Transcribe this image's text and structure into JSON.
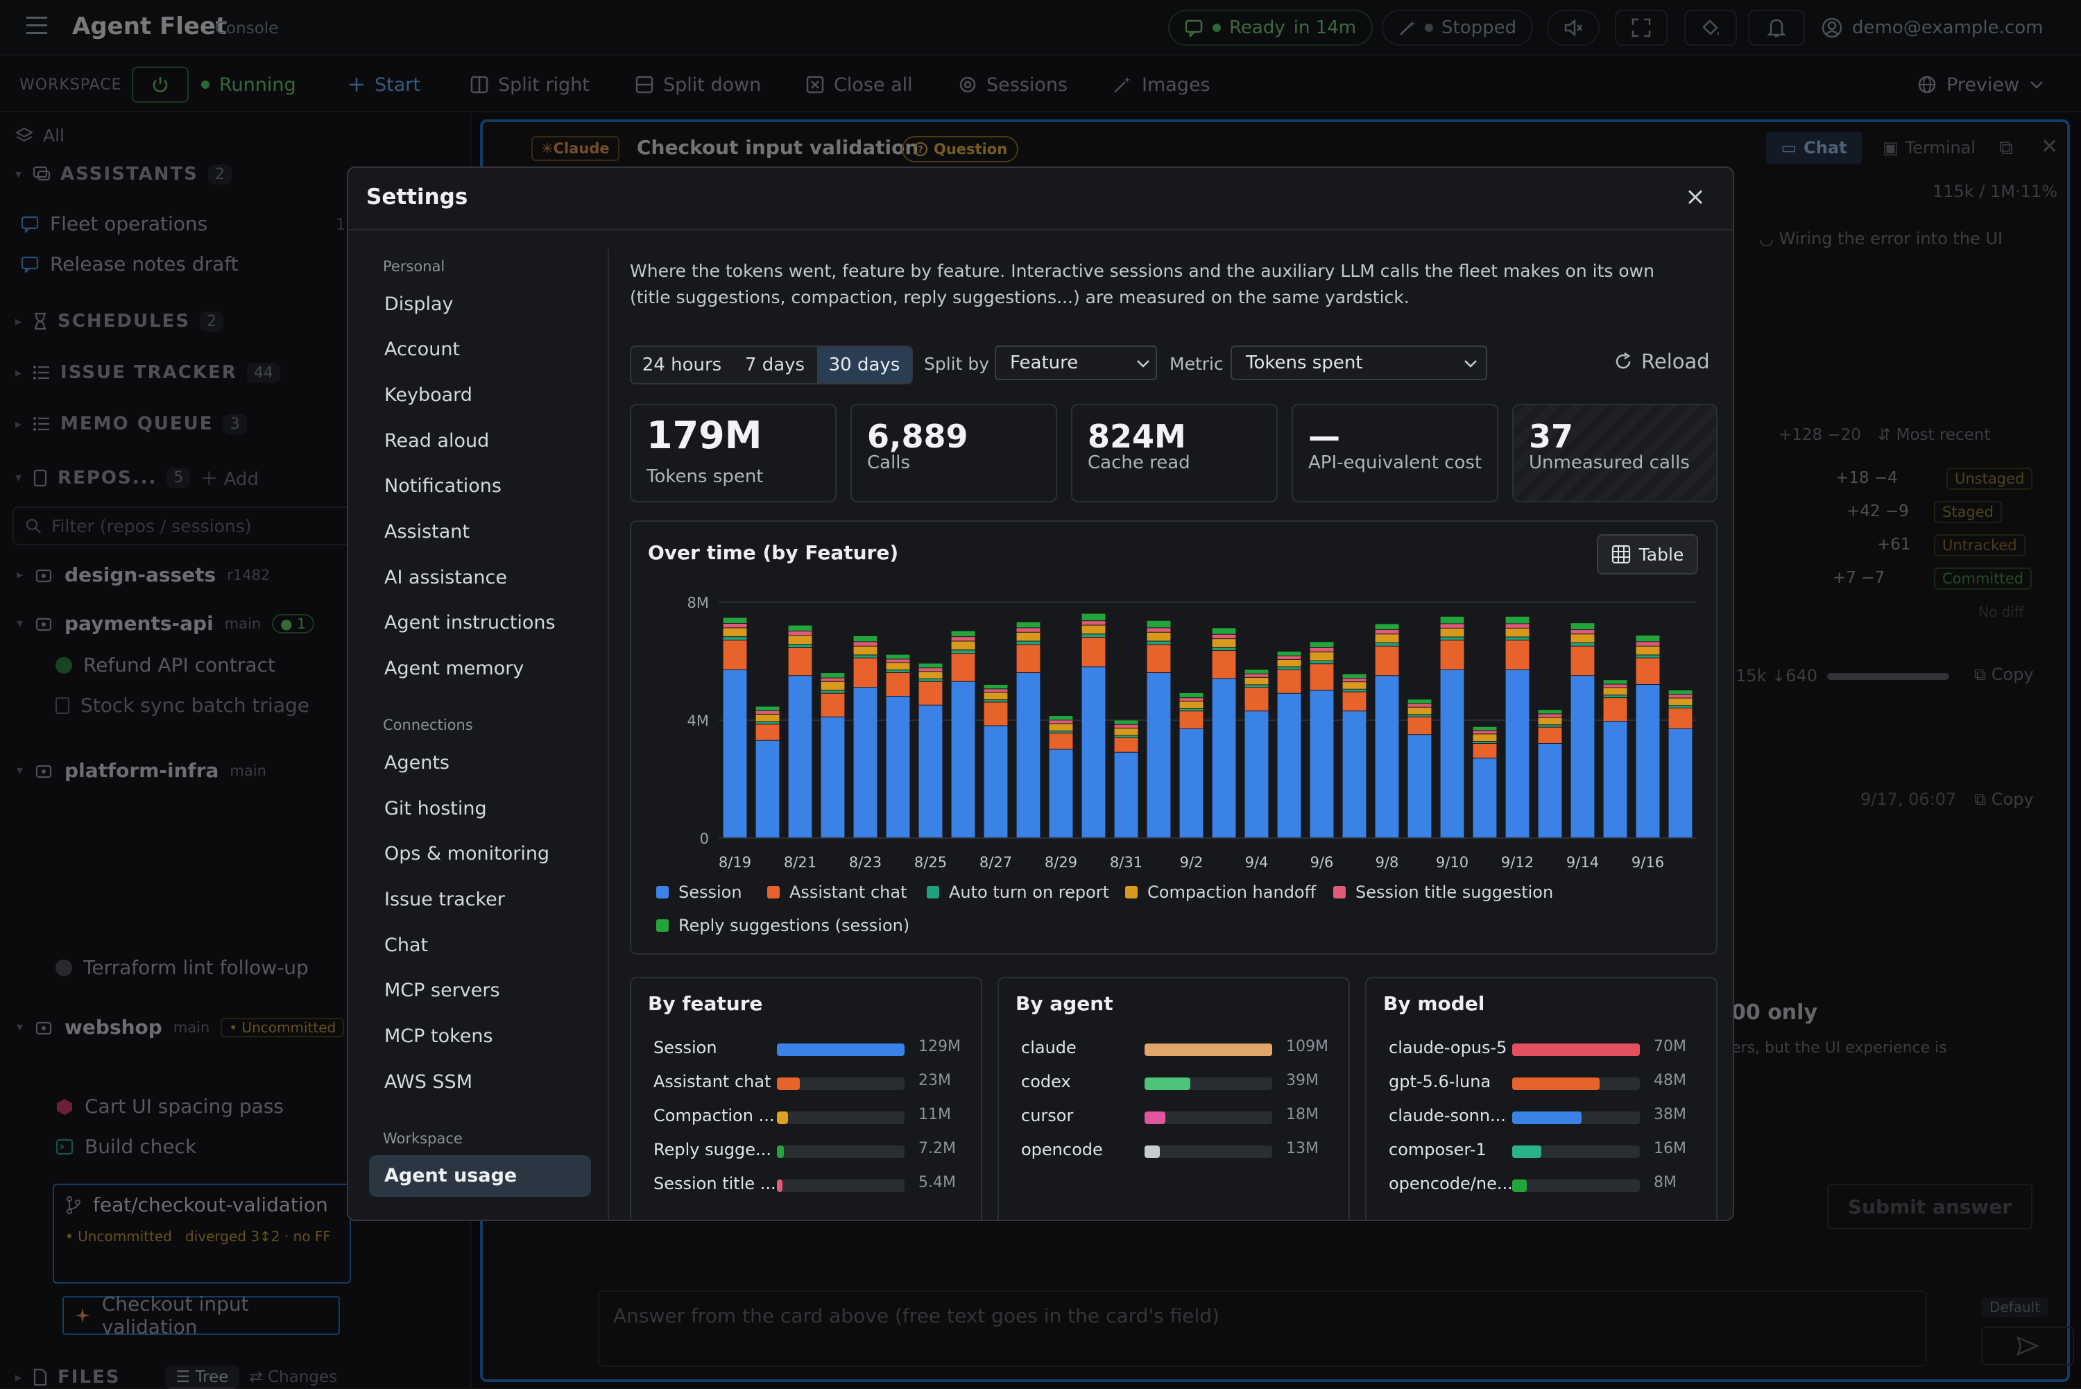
{
  "app": {
    "title": "Agent Fleet",
    "subtitle": "Console"
  },
  "topbar": {
    "status_ready": "Ready",
    "status_in": "in 14m",
    "status_stopped": "Stopped",
    "user_email": "demo@example.com"
  },
  "toolbar": {
    "workspace_label": "WORKSPACE",
    "running": "Running",
    "start": "Start",
    "split_right": "Split right",
    "split_down": "Split down",
    "close_all": "Close all",
    "sessions": "Sessions",
    "images": "Images",
    "preview": "Preview"
  },
  "sidebar": {
    "filter_all": "All",
    "assistants": {
      "label": "ASSISTANTS",
      "count": "2"
    },
    "assistant_items": [
      "Fleet operations",
      "Release notes draft"
    ],
    "fleet_ops_count": "1",
    "schedules": {
      "label": "SCHEDULES",
      "count": "2"
    },
    "issue_tracker": {
      "label": "ISSUE TRACKER",
      "count": "44"
    },
    "memo_queue": {
      "label": "MEMO QUEUE",
      "count": "3"
    },
    "repos": {
      "label": "REPOS...",
      "count": "5",
      "add": "Add"
    },
    "filter_placeholder": "Filter (repos / sessions)",
    "repo_design_assets": {
      "name": "design-assets",
      "rev": "r1482"
    },
    "repo_payments": {
      "name": "payments-api",
      "branch": "main",
      "badge": "1"
    },
    "payments_sessions": [
      "Refund API contract",
      "Stock sync batch triage"
    ],
    "repo_platform": {
      "name": "platform-infra",
      "branch": "main"
    },
    "platform_sessions": [
      "Terraform lint follow-up"
    ],
    "repo_webshop": {
      "name": "webshop",
      "branch": "main",
      "uncommitted": "Uncommitted"
    },
    "webshop_sessions": [
      "Cart UI spacing pass",
      "Build check"
    ],
    "branch": {
      "name": "feat/checkout-validation",
      "uncommitted": "Uncommitted",
      "diverged": "diverged 3↕2 · no FF"
    },
    "branch_session": "Checkout input validation",
    "files": {
      "label": "FILES",
      "tree": "Tree",
      "changes": "Changes"
    }
  },
  "session": {
    "agent_badge": "Claude",
    "title": "Checkout input validation",
    "question_badge": "Question",
    "tab_chat": "Chat",
    "tab_terminal": "Terminal",
    "token_readout": "115k / 1M·11%",
    "task_line": "Wiring the error into the UI",
    "diff_total": "+128 −20",
    "most_recent": "Most recent",
    "diff_rows": [
      {
        "delta": "+18 −4",
        "state": "Unstaged"
      },
      {
        "delta": "+42 −9",
        "state": "Staged"
      },
      {
        "delta": "+61",
        "state": "Untracked"
      },
      {
        "delta": "+7 −7",
        "state": "Committed"
      }
    ],
    "no_diff": "No diff",
    "usage_readout": "15k ↓640",
    "copy": "Copy",
    "timestamp": "9/17, 06:07",
    "card_title_fragment": "00 only",
    "card_text_fragment": "ers, but the UI experience is",
    "submit": "Submit answer",
    "composer_placeholder": "Answer from the card above (free text goes in the card's field)",
    "default_badge": "Default"
  },
  "settings": {
    "title": "Settings",
    "nav_groups": [
      {
        "heading": "Personal",
        "items": [
          "Display",
          "Account",
          "Keyboard",
          "Read aloud",
          "Notifications",
          "Assistant",
          "AI assistance",
          "Agent instructions",
          "Agent memory"
        ]
      },
      {
        "heading": "Connections",
        "items": [
          "Agents",
          "Git hosting",
          "Ops & monitoring",
          "Issue tracker",
          "Chat",
          "MCP servers",
          "MCP tokens",
          "AWS SSM"
        ]
      },
      {
        "heading": "Workspace",
        "items": [
          "Agent usage"
        ]
      }
    ],
    "active_item": "Agent usage",
    "description": "Where the tokens went, feature by feature. Interactive sessions and the auxiliary LLM calls the fleet makes on its own (title suggestions, compaction, reply suggestions...) are measured on the same yardstick.",
    "ranges": [
      "24 hours",
      "7 days",
      "30 days"
    ],
    "selected_range": "30 days",
    "split_by_label": "Split by",
    "split_by_value": "Feature",
    "metric_label": "Metric",
    "metric_value": "Tokens spent",
    "reload": "Reload",
    "kpis": [
      {
        "value": "179M",
        "label": "Tokens spent"
      },
      {
        "value": "6,889",
        "label": "Calls"
      },
      {
        "value": "824M",
        "label": "Cache read"
      },
      {
        "value": "—",
        "label": "API-equivalent cost"
      },
      {
        "value": "37",
        "label": "Unmeasured calls"
      }
    ],
    "chart_title": "Over time (by Feature)",
    "table_button": "Table",
    "breakdowns": [
      {
        "title": "By feature",
        "rows": [
          {
            "label": "Session",
            "value": "129M",
            "frac": 1.0,
            "color": "#3b82e6"
          },
          {
            "label": "Assistant chat",
            "value": "23M",
            "frac": 0.178,
            "color": "#e8622c"
          },
          {
            "label": "Compaction ...",
            "value": "11M",
            "frac": 0.085,
            "color": "#e0a020"
          },
          {
            "label": "Reply sugge...",
            "value": "7.2M",
            "frac": 0.056,
            "color": "#22a63c"
          },
          {
            "label": "Session title ...",
            "value": "5.4M",
            "frac": 0.042,
            "color": "#e05a7a"
          }
        ]
      },
      {
        "title": "By agent",
        "rows": [
          {
            "label": "claude",
            "value": "109M",
            "frac": 1.0,
            "color": "#e3a66a"
          },
          {
            "label": "codex",
            "value": "39M",
            "frac": 0.358,
            "color": "#4cc47a"
          },
          {
            "label": "cursor",
            "value": "18M",
            "frac": 0.165,
            "color": "#e055a0"
          },
          {
            "label": "opencode",
            "value": "13M",
            "frac": 0.119,
            "color": "#c8cbd0"
          }
        ]
      },
      {
        "title": "By model",
        "rows": [
          {
            "label": "claude-opus-5",
            "value": "70M",
            "frac": 1.0,
            "color": "#e5505e"
          },
          {
            "label": "gpt-5.6-luna",
            "value": "48M",
            "frac": 0.686,
            "color": "#e8622c"
          },
          {
            "label": "claude-sonn...",
            "value": "38M",
            "frac": 0.543,
            "color": "#3b82e6"
          },
          {
            "label": "composer-1",
            "value": "16M",
            "frac": 0.229,
            "color": "#2cb28a"
          },
          {
            "label": "opencode/ne...",
            "value": "8M",
            "frac": 0.114,
            "color": "#22a63c"
          }
        ]
      }
    ]
  },
  "chart_data": {
    "type": "bar",
    "stacked": true,
    "title": "Over time (by Feature)",
    "xlabel": "",
    "ylabel": "",
    "ylim": [
      0,
      8000000
    ],
    "y_ticks": [
      "0",
      "4M",
      "8M"
    ],
    "x_tick_labels": [
      "8/19",
      "8/21",
      "8/23",
      "8/25",
      "8/27",
      "8/29",
      "8/31",
      "9/2",
      "9/4",
      "9/6",
      "9/8",
      "9/10",
      "9/12",
      "9/14",
      "9/16"
    ],
    "categories": [
      "8/19",
      "8/20",
      "8/21",
      "8/22",
      "8/23",
      "8/24",
      "8/25",
      "8/26",
      "8/27",
      "8/28",
      "8/29",
      "8/30",
      "8/31",
      "9/1",
      "9/2",
      "9/3",
      "9/4",
      "9/5",
      "9/6",
      "9/7",
      "9/8",
      "9/9",
      "9/10",
      "9/11",
      "9/12",
      "9/13",
      "9/14",
      "9/15",
      "9/16",
      "9/17"
    ],
    "grid": true,
    "legend_position": "bottom",
    "series": [
      {
        "name": "Session",
        "color": "#3b82e6",
        "values": [
          5700000,
          3300000,
          5500000,
          4100000,
          5100000,
          4800000,
          4500000,
          5300000,
          3800000,
          5600000,
          3000000,
          5800000,
          2900000,
          5600000,
          3700000,
          5400000,
          4300000,
          4900000,
          5000000,
          4300000,
          5500000,
          3500000,
          5700000,
          2700000,
          5700000,
          3200000,
          5500000,
          3950000,
          5200000,
          3700000
        ]
      },
      {
        "name": "Assistant chat",
        "color": "#e8622c",
        "values": [
          1000000,
          550000,
          950000,
          800000,
          1000000,
          800000,
          800000,
          950000,
          800000,
          950000,
          550000,
          1000000,
          500000,
          950000,
          600000,
          950000,
          800000,
          800000,
          900000,
          650000,
          1000000,
          600000,
          1000000,
          500000,
          1000000,
          550000,
          1000000,
          800000,
          900000,
          700000
        ]
      },
      {
        "name": "Auto turn on report",
        "color": "#1fa37f",
        "values": [
          120000,
          90000,
          110000,
          100000,
          100000,
          90000,
          90000,
          120000,
          80000,
          120000,
          70000,
          110000,
          70000,
          120000,
          80000,
          100000,
          90000,
          100000,
          100000,
          90000,
          110000,
          80000,
          110000,
          70000,
          110000,
          80000,
          110000,
          90000,
          100000,
          90000
        ]
      },
      {
        "name": "Compaction handoff",
        "color": "#d99a1c",
        "values": [
          300000,
          250000,
          300000,
          300000,
          300000,
          250000,
          250000,
          300000,
          250000,
          300000,
          250000,
          300000,
          250000,
          300000,
          250000,
          300000,
          250000,
          250000,
          300000,
          250000,
          300000,
          250000,
          300000,
          250000,
          300000,
          250000,
          300000,
          250000,
          300000,
          250000
        ]
      },
      {
        "name": "Session title suggestion",
        "color": "#e05a7a",
        "values": [
          150000,
          120000,
          150000,
          120000,
          150000,
          120000,
          120000,
          150000,
          120000,
          150000,
          120000,
          150000,
          120000,
          150000,
          120000,
          150000,
          120000,
          120000,
          150000,
          120000,
          150000,
          120000,
          150000,
          120000,
          150000,
          120000,
          150000,
          120000,
          150000,
          120000
        ]
      },
      {
        "name": "Reply suggestions (session)",
        "color": "#22a63c",
        "values": [
          200000,
          150000,
          200000,
          180000,
          200000,
          160000,
          160000,
          200000,
          150000,
          200000,
          150000,
          250000,
          150000,
          250000,
          170000,
          220000,
          150000,
          150000,
          200000,
          150000,
          200000,
          150000,
          250000,
          130000,
          250000,
          150000,
          230000,
          150000,
          220000,
          150000
        ]
      }
    ]
  }
}
